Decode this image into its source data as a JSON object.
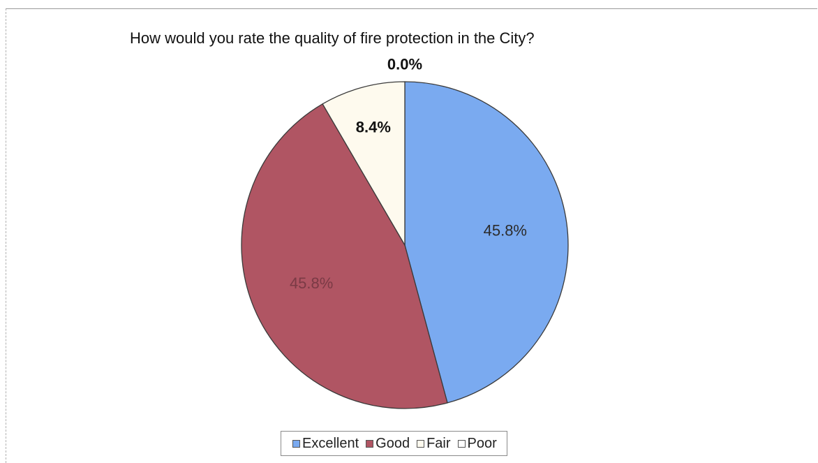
{
  "chart_data": {
    "type": "pie",
    "title": "How would you rate the quality of fire protection in the City?",
    "categories": [
      "Excellent",
      "Good",
      "Fair",
      "Poor"
    ],
    "values": [
      45.8,
      45.8,
      8.4,
      0.0
    ],
    "labels": [
      "45.8%",
      "45.8%",
      "8.4%",
      "0.0%"
    ],
    "colors": [
      "#7aaaf0",
      "#b05563",
      "#fefaee",
      "#ffffff"
    ],
    "legend_position": "bottom"
  }
}
